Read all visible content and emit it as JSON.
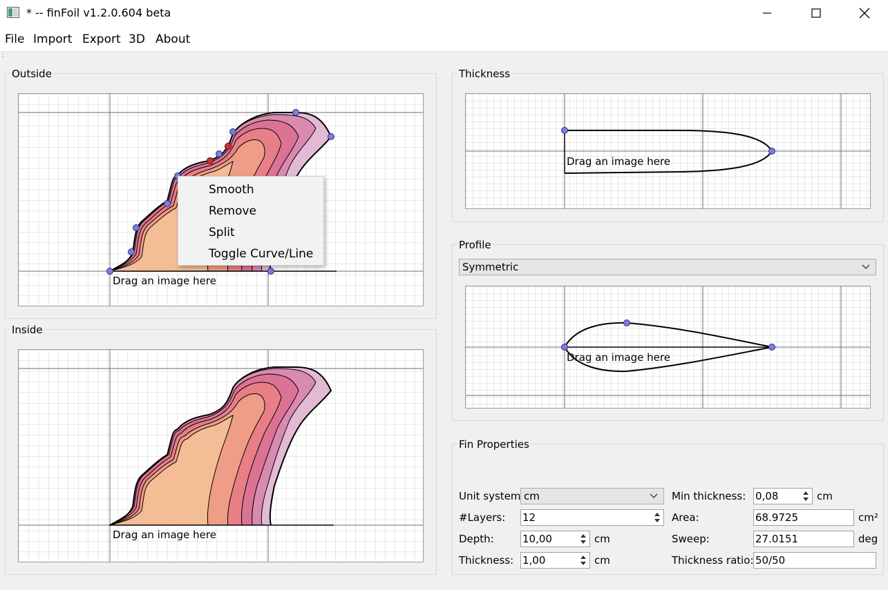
{
  "window": {
    "title": "* -- finFoil v1.2.0.604 beta"
  },
  "menu": {
    "file": "File",
    "import": "Import",
    "export": "Export",
    "three_d": "3D",
    "about": "About"
  },
  "outside": {
    "title": "Outside",
    "drag_hint": "Drag an image here"
  },
  "inside": {
    "title": "Inside",
    "drag_hint": "Drag an image here"
  },
  "context_menu": {
    "smooth": "Smooth",
    "remove": "Remove",
    "split": "Split",
    "toggle": "Toggle Curve/Line"
  },
  "thickness_panel": {
    "title": "Thickness",
    "drag_hint": "Drag an image here"
  },
  "profile_panel": {
    "title": "Profile",
    "selected": "Symmetric",
    "drag_hint": "Drag an image here"
  },
  "fin_properties": {
    "title": "Fin Properties",
    "unit_system_label": "Unit system",
    "unit_system_value": "cm",
    "layers_label": "#Layers:",
    "layers_value": "12",
    "depth_label": "Depth:",
    "depth_value": "10,00",
    "depth_unit": "cm",
    "thickness_label": "Thickness:",
    "thickness_value": "1,00",
    "thickness_unit": "cm",
    "min_thickness_label": "Min thickness:",
    "min_thickness_value": "0,08",
    "min_thickness_unit": "cm",
    "area_label": "Area:",
    "area_value": "68.9725",
    "area_unit": "cm²",
    "sweep_label": "Sweep:",
    "sweep_value": "27.0151",
    "sweep_unit": "deg",
    "thickness_ratio_label": "Thickness ratio:",
    "thickness_ratio_value": "50/50"
  },
  "colors": {
    "control_point": "#7b7fd6",
    "selected_point": "#d03030",
    "layer_1": "#f4bd96",
    "layer_2": "#ef9d87",
    "layer_3": "#e87f86",
    "layer_4": "#dc7394",
    "layer_5": "#d98ab0",
    "layer_6": "#e2bad4"
  }
}
